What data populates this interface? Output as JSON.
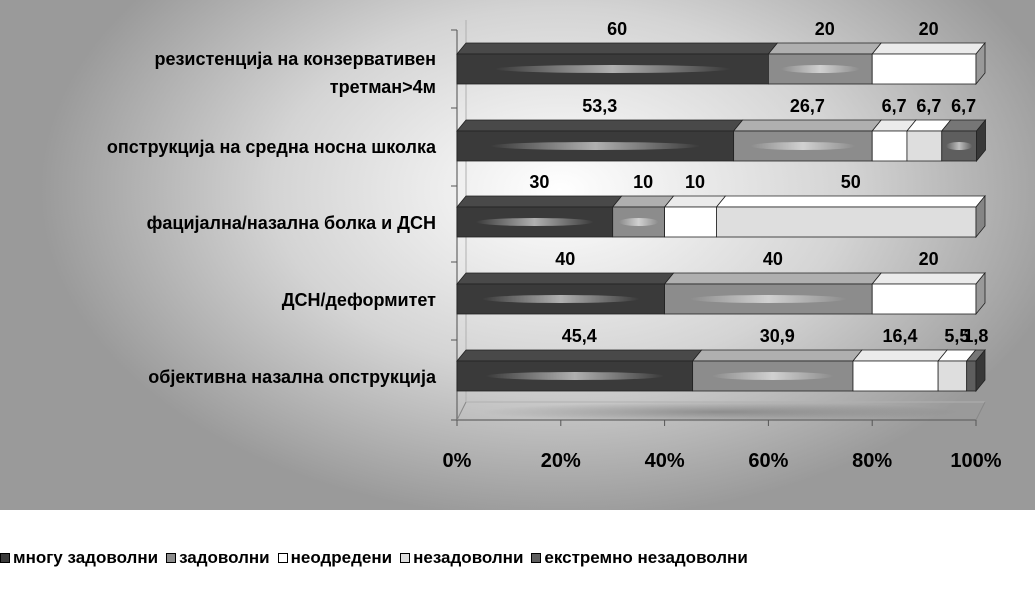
{
  "chart_data": {
    "type": "bar",
    "orientation": "horizontal",
    "stacked": "percent",
    "categories": [
      [
        "резистенција на конзервативен",
        "третман>4м"
      ],
      [
        "опструкција на средна носна школка"
      ],
      [
        "фацијална/назална болка и ДСН"
      ],
      [
        "ДСН/деформитет"
      ],
      [
        "објективна назална опструкција"
      ]
    ],
    "series": [
      {
        "name": "многу задоволни",
        "color": "#3a3a3a",
        "values": [
          60,
          53.3,
          30,
          40,
          45.4
        ],
        "labels": [
          "60",
          "53,3",
          "30",
          "40",
          "45,4"
        ]
      },
      {
        "name": "задоволни",
        "color": "#8c8c8c",
        "values": [
          20,
          26.7,
          10,
          40,
          30.9
        ],
        "labels": [
          "20",
          "26,7",
          "10",
          "40",
          "30,9"
        ]
      },
      {
        "name": "неодредени",
        "color": "#ffffff",
        "values": [
          20,
          6.7,
          10,
          20,
          16.4
        ],
        "labels": [
          "20",
          "6,7",
          "10",
          "20",
          "16,4"
        ]
      },
      {
        "name": "незадоволни",
        "color": "#dedede",
        "values": [
          0,
          6.7,
          50,
          0,
          5.5
        ],
        "labels": [
          "",
          "6,7",
          "50",
          "",
          "5,5"
        ]
      },
      {
        "name": "екстремно незадоволни",
        "color": "#5e5e5e",
        "values": [
          0,
          6.7,
          0,
          0,
          1.8
        ],
        "labels": [
          "",
          "6,7",
          "",
          "",
          "1,8"
        ]
      }
    ],
    "xticks": [
      "0%",
      "20%",
      "40%",
      "60%",
      "80%",
      "100%"
    ],
    "xlim": [
      0,
      100
    ],
    "grid": false,
    "legend_position": "bottom"
  }
}
